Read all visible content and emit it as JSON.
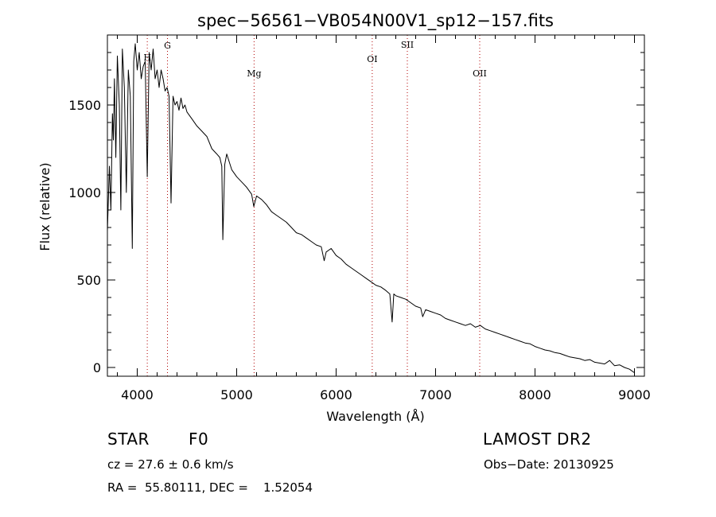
{
  "chart_data": {
    "type": "line",
    "title": "spec−56561−VB054N00V1_sp12−157.fits",
    "xlabel": "Wavelength (Å)",
    "ylabel": "Flux (relative)",
    "xlim": [
      3700,
      9100
    ],
    "ylim": [
      -50,
      1900
    ],
    "xticks": [
      4000,
      5000,
      6000,
      7000,
      8000,
      9000
    ],
    "yticks": [
      0,
      500,
      1000,
      1500
    ],
    "grid": false,
    "series": [
      {
        "color": "#000000",
        "x": [
          3700,
          3720,
          3735,
          3750,
          3760,
          3770,
          3785,
          3800,
          3820,
          3835,
          3850,
          3870,
          3890,
          3910,
          3930,
          3950,
          3965,
          3980,
          4000,
          4020,
          4040,
          4060,
          4080,
          4101,
          4120,
          4140,
          4160,
          4180,
          4200,
          4220,
          4240,
          4260,
          4280,
          4300,
          4320,
          4340,
          4360,
          4380,
          4400,
          4420,
          4440,
          4460,
          4480,
          4500,
          4550,
          4600,
          4650,
          4700,
          4750,
          4800,
          4830,
          4850,
          4861,
          4880,
          4900,
          4950,
          5000,
          5050,
          5100,
          5150,
          5172,
          5200,
          5250,
          5300,
          5350,
          5400,
          5450,
          5500,
          5550,
          5600,
          5650,
          5700,
          5750,
          5800,
          5850,
          5880,
          5900,
          5950,
          6000,
          6050,
          6100,
          6150,
          6200,
          6250,
          6300,
          6350,
          6400,
          6450,
          6500,
          6540,
          6563,
          6580,
          6600,
          6650,
          6700,
          6750,
          6800,
          6850,
          6870,
          6900,
          6950,
          7000,
          7050,
          7100,
          7150,
          7200,
          7250,
          7300,
          7350,
          7400,
          7450,
          7500,
          7550,
          7600,
          7650,
          7700,
          7750,
          7800,
          7850,
          7900,
          7950,
          8000,
          8050,
          8100,
          8150,
          8200,
          8250,
          8300,
          8350,
          8400,
          8450,
          8500,
          8550,
          8600,
          8650,
          8700,
          8750,
          8800,
          8850,
          8900,
          8950,
          9000
        ],
        "y": [
          780,
          1150,
          900,
          1450,
          1300,
          1650,
          1200,
          1780,
          1500,
          900,
          1820,
          1600,
          1000,
          1700,
          1550,
          680,
          1750,
          1850,
          1700,
          1800,
          1650,
          1720,
          1750,
          1090,
          1800,
          1700,
          1820,
          1650,
          1700,
          1600,
          1700,
          1650,
          1580,
          1600,
          1550,
          940,
          1550,
          1500,
          1520,
          1470,
          1540,
          1480,
          1500,
          1460,
          1420,
          1380,
          1350,
          1320,
          1250,
          1220,
          1200,
          1150,
          730,
          1160,
          1220,
          1130,
          1090,
          1060,
          1030,
          990,
          920,
          980,
          960,
          930,
          890,
          870,
          850,
          830,
          800,
          770,
          760,
          740,
          720,
          700,
          690,
          610,
          660,
          680,
          640,
          620,
          590,
          570,
          550,
          530,
          510,
          490,
          470,
          460,
          440,
          420,
          260,
          420,
          410,
          400,
          390,
          370,
          350,
          340,
          290,
          330,
          320,
          310,
          300,
          280,
          270,
          260,
          250,
          240,
          250,
          230,
          240,
          220,
          210,
          200,
          190,
          180,
          170,
          160,
          150,
          140,
          135,
          120,
          110,
          100,
          95,
          85,
          80,
          70,
          60,
          55,
          50,
          40,
          45,
          30,
          25,
          20,
          40,
          10,
          15,
          0,
          -10,
          -30
        ]
      }
    ],
    "vlines": [
      {
        "x": 4101,
        "label": "H",
        "color": "#b00000"
      },
      {
        "x": 4304,
        "label": "G",
        "color": "#b00000"
      },
      {
        "x": 5175,
        "label": "Mg",
        "color": "#b00000"
      },
      {
        "x": 6363,
        "label": "OI",
        "color": "#b00000"
      },
      {
        "x": 6716,
        "label": "SII",
        "color": "#b00000"
      },
      {
        "x": 7444,
        "label": "OII",
        "color": "#b00000"
      }
    ]
  },
  "footer": {
    "object_class": "STAR",
    "subclass": "F0",
    "survey": "LAMOST DR2",
    "cz": "cz = 27.6 ± 0.6 km/s",
    "obs_date": "Obs−Date: 20130925",
    "coords": "RA =  55.80111, DEC =    1.52054"
  }
}
